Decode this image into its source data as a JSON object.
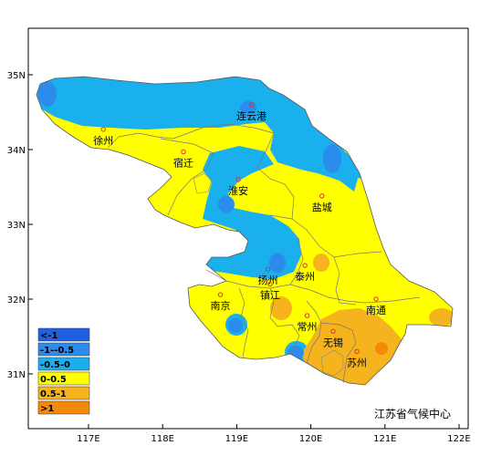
{
  "map": {
    "credit": "江苏省气候中心",
    "lat_ticks": [
      {
        "value": 35,
        "label": "35N"
      },
      {
        "value": 34,
        "label": "34N"
      },
      {
        "value": 33,
        "label": "33N"
      },
      {
        "value": 32,
        "label": "32N"
      },
      {
        "value": 31,
        "label": "31N"
      }
    ],
    "lon_ticks": [
      {
        "value": 117,
        "label": "117E"
      },
      {
        "value": 118,
        "label": "118E"
      },
      {
        "value": 119,
        "label": "119E"
      },
      {
        "value": 120,
        "label": "120E"
      },
      {
        "value": 121,
        "label": "121E"
      },
      {
        "value": 122,
        "label": "122E"
      }
    ],
    "cities": [
      {
        "name": "徐州",
        "lon": 117.2,
        "lat": 34.27
      },
      {
        "name": "连云港",
        "lon": 119.2,
        "lat": 34.6
      },
      {
        "name": "宿迁",
        "lon": 118.28,
        "lat": 33.97
      },
      {
        "name": "淮安",
        "lon": 119.02,
        "lat": 33.6
      },
      {
        "name": "盐城",
        "lon": 120.15,
        "lat": 33.38
      },
      {
        "name": "扬州",
        "lon": 119.42,
        "lat": 32.4
      },
      {
        "name": "泰州",
        "lon": 119.92,
        "lat": 32.45
      },
      {
        "name": "镇江",
        "lon": 119.45,
        "lat": 32.2
      },
      {
        "name": "南京",
        "lon": 118.78,
        "lat": 32.06
      },
      {
        "name": "常州",
        "lon": 119.95,
        "lat": 31.78
      },
      {
        "name": "南通",
        "lon": 120.88,
        "lat": 32.0
      },
      {
        "name": "无锡",
        "lon": 120.3,
        "lat": 31.57
      },
      {
        "name": "苏州",
        "lon": 120.62,
        "lat": 31.3
      }
    ],
    "legend": [
      {
        "label": "<-1",
        "color": "#1f5fe0"
      },
      {
        "label": "-1--0.5",
        "color": "#2b8cee"
      },
      {
        "label": "-0.5-0",
        "color": "#1ab0ee"
      },
      {
        "label": "0-0.5",
        "color": "#ffff00"
      },
      {
        "label": "0.5-1",
        "color": "#f5b41e"
      },
      {
        "label": ">1",
        "color": "#f58a0a"
      }
    ]
  }
}
